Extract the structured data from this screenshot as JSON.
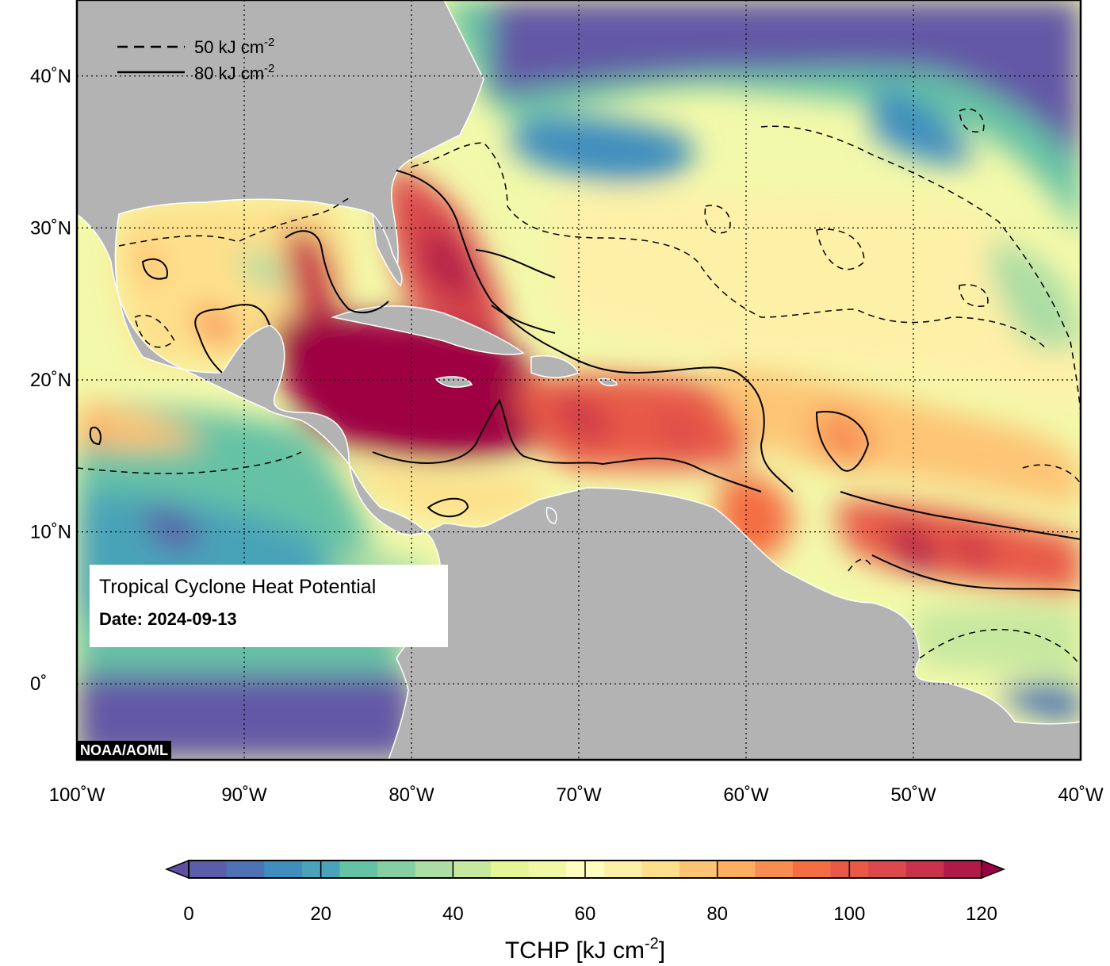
{
  "map": {
    "title": "Tropical Cyclone Heat Potential",
    "date_label": "Date: 2024-09-13",
    "credit": "NOAA/AOML",
    "extent": {
      "lon_min": -100,
      "lon_max": -40,
      "lat_min": -5,
      "lat_max": 45
    },
    "lon_ticks": [
      {
        "value": -100,
        "label": "100˚W"
      },
      {
        "value": -90,
        "label": "90˚W"
      },
      {
        "value": -80,
        "label": "80˚W"
      },
      {
        "value": -70,
        "label": "70˚W"
      },
      {
        "value": -60,
        "label": "60˚W"
      },
      {
        "value": -50,
        "label": "50˚W"
      },
      {
        "value": -40,
        "label": "40˚W"
      }
    ],
    "lat_ticks": [
      {
        "value": 40,
        "label": "40˚N"
      },
      {
        "value": 30,
        "label": "30˚N"
      },
      {
        "value": 20,
        "label": "20˚N"
      },
      {
        "value": 10,
        "label": "10˚N"
      },
      {
        "value": 0,
        "label": "0˚"
      }
    ],
    "grid": "dotted",
    "contour_legend": [
      {
        "style": "dashed",
        "value": "50",
        "label": "50 kJ cm",
        "sup": "-2"
      },
      {
        "style": "solid",
        "value": "80",
        "label": "80 kJ cm",
        "sup": "-2"
      }
    ],
    "colors": {
      "land": "#b3b3b3",
      "coast": "#ffffff",
      "deep_low": "#6459a6"
    }
  },
  "colorbar": {
    "title": "TCHP [kJ cm",
    "title_sup": "-2",
    "title_end": "]",
    "min": 0,
    "max": 120,
    "ticks": [
      {
        "value": 0,
        "label": "0"
      },
      {
        "value": 20,
        "label": "20"
      },
      {
        "value": 40,
        "label": "40"
      },
      {
        "value": 60,
        "label": "60"
      },
      {
        "value": 80,
        "label": "80"
      },
      {
        "value": 100,
        "label": "100"
      },
      {
        "value": 120,
        "label": "120"
      }
    ],
    "extend": "both",
    "colors": [
      "#5e4fa2",
      "#5b5da8",
      "#4f72b2",
      "#3f8ebe",
      "#4aa3b8",
      "#66c2a5",
      "#86cfa5",
      "#abdda4",
      "#c6e89f",
      "#e6f598",
      "#f1f9a6",
      "#ffffbf",
      "#fff0a8",
      "#fee08b",
      "#fdc474",
      "#fdae61",
      "#f88d52",
      "#f46d43",
      "#e85a47",
      "#dc494c",
      "#c8324a",
      "#b11a48",
      "#9e0142"
    ]
  }
}
